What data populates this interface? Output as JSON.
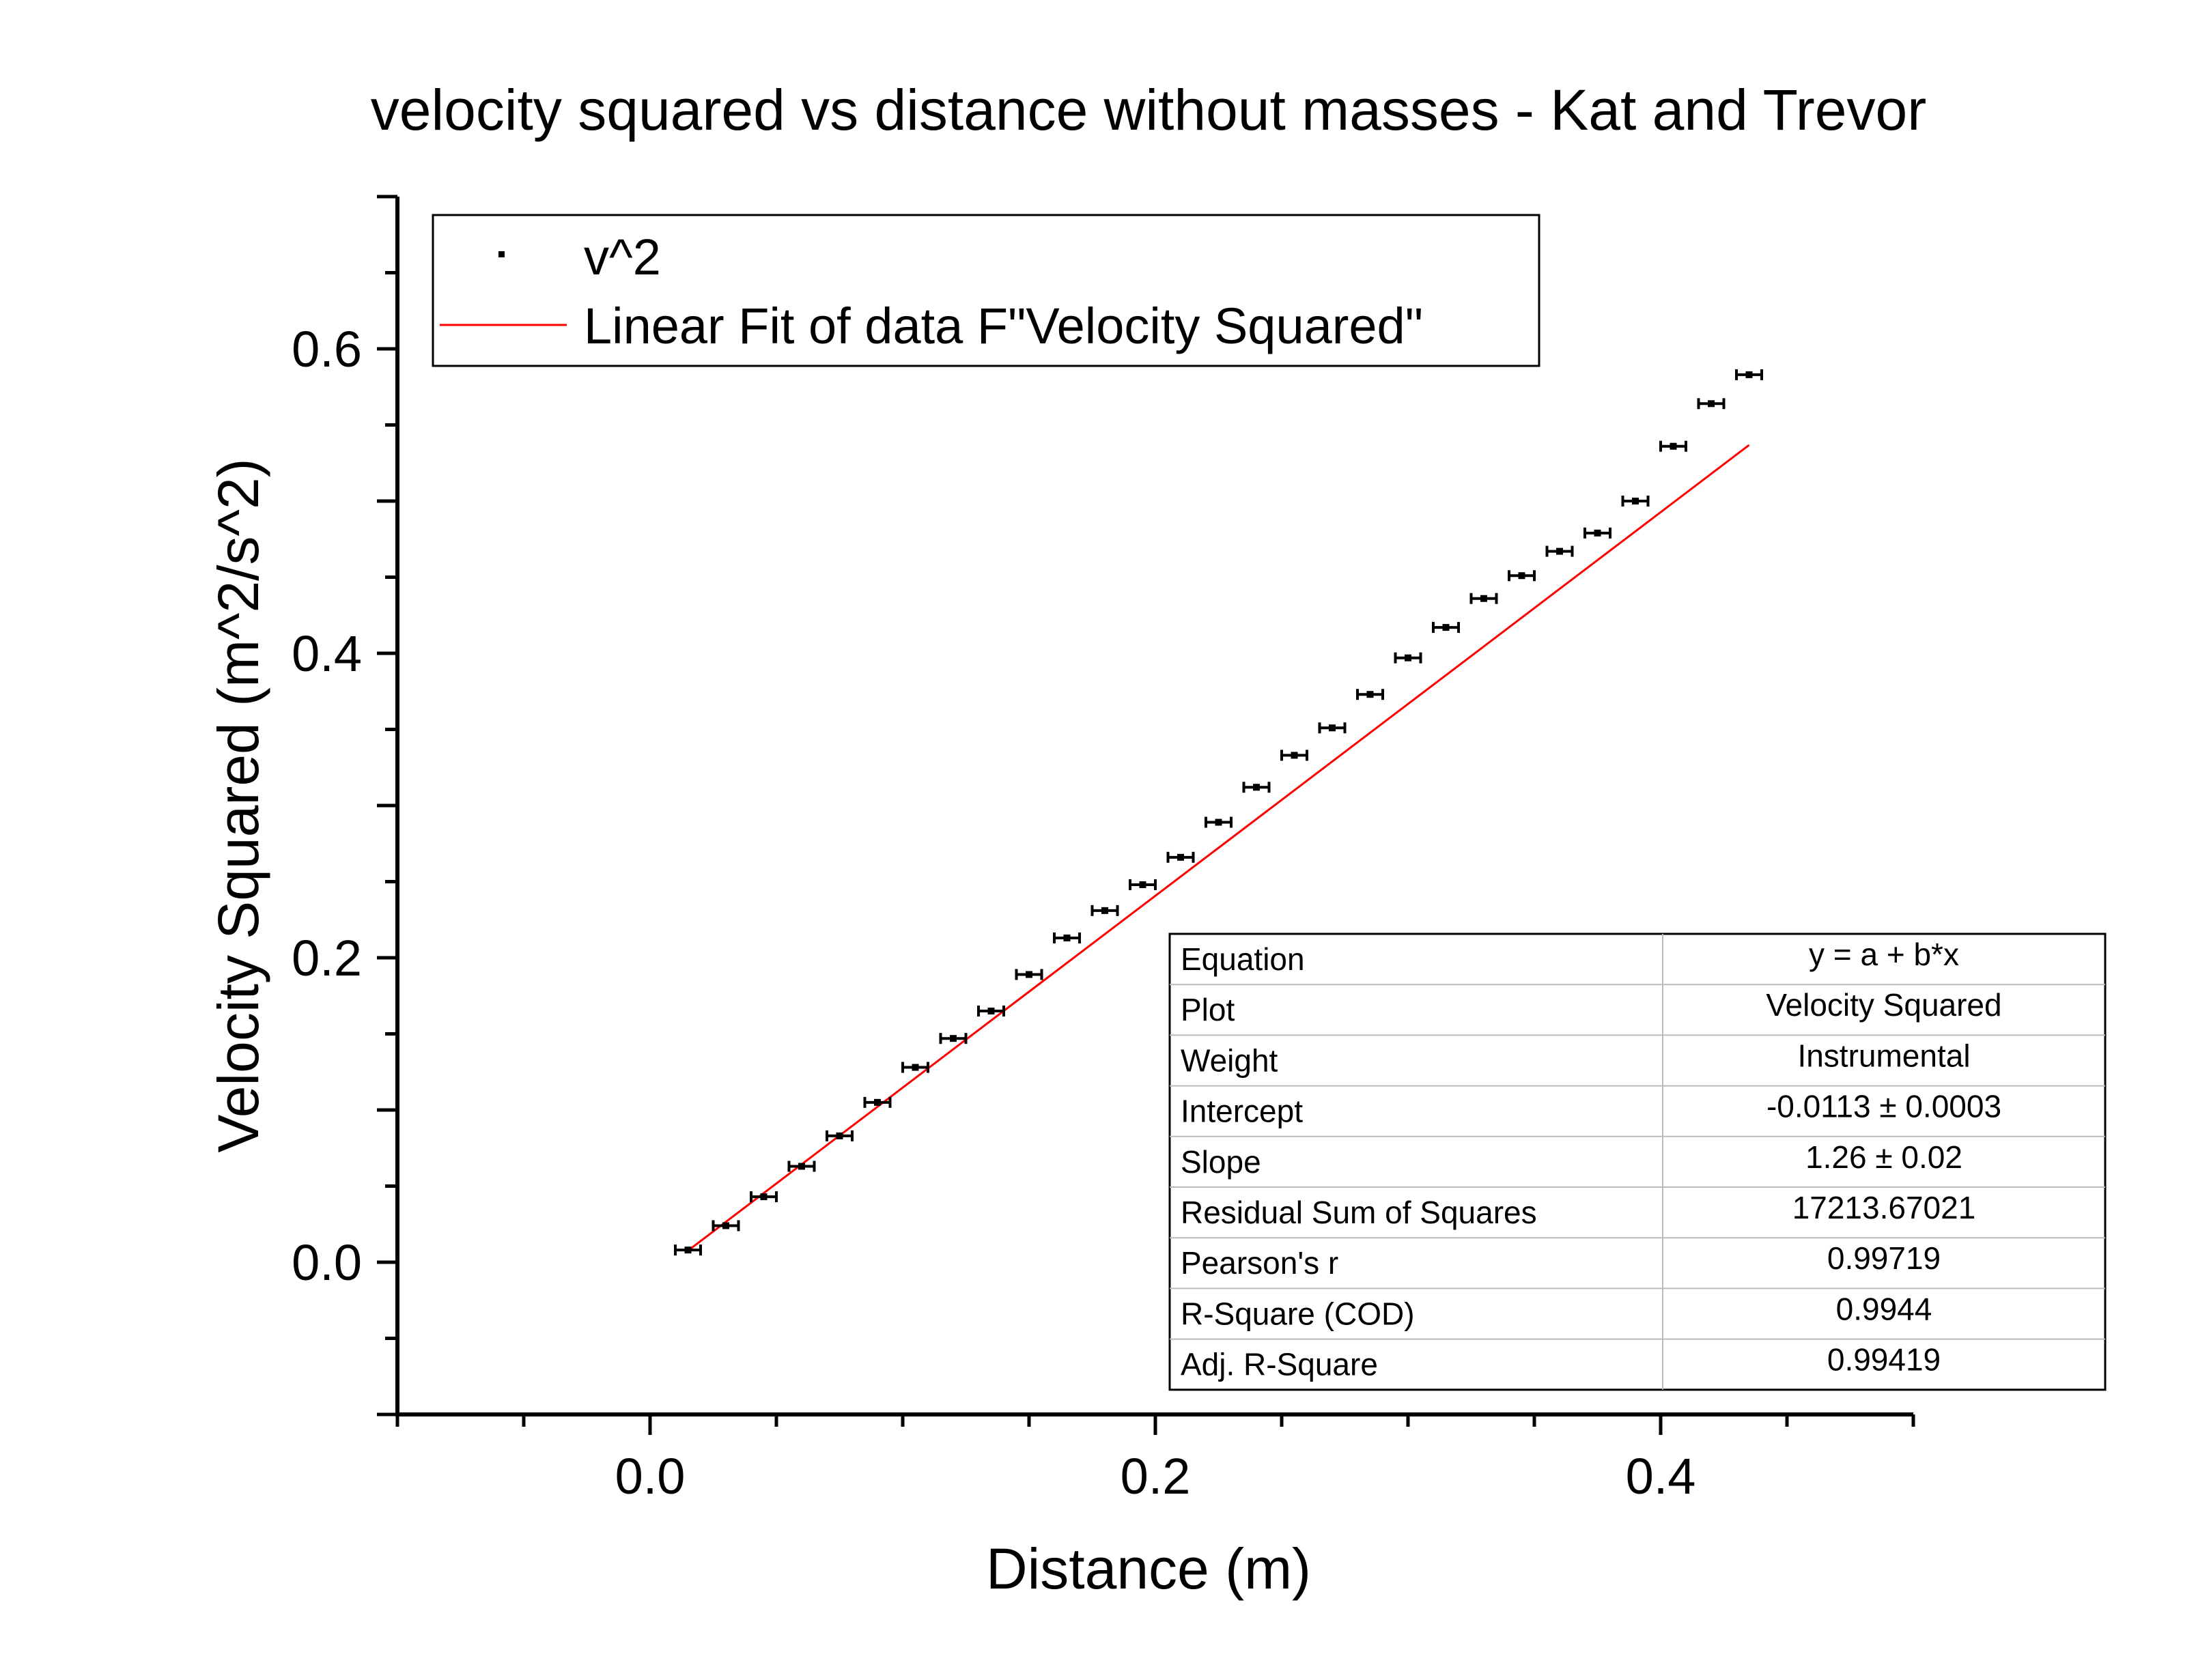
{
  "chart_data": {
    "type": "scatter",
    "title": "velocity squared vs distance without masses - Kat and Trevor",
    "xlabel": "Distance (m)",
    "ylabel": "Velocity Squared (m^2/s^2)",
    "xlim": [
      -0.1,
      0.5
    ],
    "ylim": [
      -0.1,
      0.7
    ],
    "x_ticks": [
      0.0,
      0.2,
      0.4
    ],
    "x_tick_labels": [
      "0.0",
      "0.2",
      "0.4"
    ],
    "y_ticks": [
      0.0,
      0.2,
      0.4,
      0.6
    ],
    "y_tick_labels": [
      "0.0",
      "0.2",
      "0.4",
      "0.6"
    ],
    "grid": false,
    "legend_position": "top-left",
    "series": [
      {
        "name": "v^2",
        "kind": "scatter-errorbar",
        "color": "#000000",
        "x": [
          0.015,
          0.03,
          0.045,
          0.06,
          0.075,
          0.09,
          0.105,
          0.12,
          0.135,
          0.15,
          0.165,
          0.18,
          0.195,
          0.21,
          0.225,
          0.24,
          0.255,
          0.27,
          0.285,
          0.3,
          0.315,
          0.33,
          0.345,
          0.36,
          0.375,
          0.39,
          0.405,
          0.42,
          0.435
        ],
        "y": [
          0.008,
          0.024,
          0.043,
          0.063,
          0.083,
          0.105,
          0.128,
          0.147,
          0.165,
          0.189,
          0.213,
          0.231,
          0.248,
          0.266,
          0.289,
          0.312,
          0.333,
          0.351,
          0.373,
          0.397,
          0.417,
          0.436,
          0.451,
          0.467,
          0.479,
          0.5,
          0.536,
          0.564,
          0.583
        ],
        "x_error": 0.005
      },
      {
        "name": "Linear Fit of data F\"Velocity Squared\"",
        "kind": "line",
        "color": "#ff0000",
        "intercept": -0.0113,
        "slope": 1.26,
        "x_range": [
          0.015,
          0.435
        ]
      }
    ],
    "fit_table": {
      "rows": [
        {
          "label": "Equation",
          "value": "y = a + b*x"
        },
        {
          "label": "Plot",
          "value": "Velocity Squared"
        },
        {
          "label": "Weight",
          "value": "Instrumental"
        },
        {
          "label": "Intercept",
          "value": "-0.0113 ± 0.0003"
        },
        {
          "label": "Slope",
          "value": "1.26 ± 0.02"
        },
        {
          "label": "Residual Sum of Squares",
          "value": "17213.67021"
        },
        {
          "label": "Pearson's r",
          "value": "0.99719"
        },
        {
          "label": "R-Square (COD)",
          "value": "0.9944"
        },
        {
          "label": "Adj. R-Square",
          "value": "0.99419"
        }
      ]
    }
  }
}
